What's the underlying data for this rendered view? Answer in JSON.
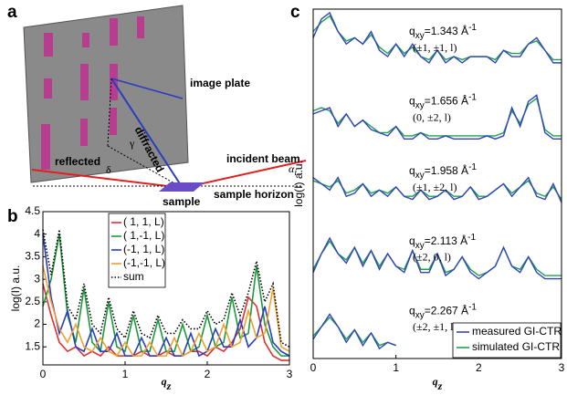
{
  "diagram": {
    "label": "a",
    "image_plate": "image plate",
    "diffracted": "diffracted",
    "reflected": "reflected",
    "incident_beam": "incident beam",
    "sample": "sample",
    "sample_horizon": "sample horizon",
    "delta": "δ",
    "gamma": "γ",
    "alpha": "α",
    "alpha_sub": "i"
  },
  "chart_data": [
    {
      "label": "b",
      "type": "line",
      "x": [
        0,
        0.1,
        0.2,
        0.3,
        0.4,
        0.5,
        0.6,
        0.7,
        0.8,
        0.9,
        1,
        1.1,
        1.2,
        1.3,
        1.4,
        1.5,
        1.6,
        1.7,
        1.8,
        1.9,
        2,
        2.1,
        2.2,
        2.3,
        2.4,
        2.5,
        2.6,
        2.7,
        2.8,
        2.9,
        3
      ],
      "xlim": [
        0,
        3
      ],
      "xticks": [
        0,
        1,
        2,
        3
      ],
      "ylim": [
        1.1,
        4.5
      ],
      "yticks": [
        1.5,
        2,
        2.5,
        3,
        3.5,
        4,
        4.5
      ],
      "ylabel": "log(I) a.u.",
      "xlabel": "q",
      "xlabel_sub": "z",
      "legend": "top-left",
      "series": [
        {
          "name": "( 1, 1, L)",
          "color": "#e03030",
          "linestyle": "solid",
          "values": [
            2.9,
            2.2,
            1.6,
            1.4,
            1.5,
            1.3,
            1.4,
            1.3,
            1.5,
            1.3,
            1.3,
            1.3,
            1.4,
            1.3,
            1.3,
            1.4,
            1.3,
            1.3,
            1.4,
            1.4,
            1.3,
            1.5,
            1.4,
            1.6,
            1.9,
            2.6,
            2.4,
            1.6,
            1.3,
            1.2,
            1.2
          ]
        },
        {
          "name": "( 1,-1, L)",
          "color": "#1a9a3a",
          "linestyle": "solid",
          "values": [
            2.4,
            3.0,
            4.0,
            2.2,
            1.6,
            2.8,
            1.6,
            1.4,
            2.5,
            1.5,
            1.4,
            2.2,
            1.4,
            1.4,
            2.1,
            1.4,
            1.4,
            2.0,
            1.4,
            1.5,
            2.2,
            1.5,
            1.6,
            2.6,
            1.7,
            1.8,
            3.3,
            2.0,
            1.5,
            1.3,
            1.3
          ]
        },
        {
          "name": "(-1, 1, L)",
          "color": "#2a3cc0",
          "linestyle": "solid",
          "values": [
            4.0,
            2.6,
            1.8,
            2.3,
            1.5,
            1.4,
            1.9,
            1.4,
            1.4,
            1.8,
            1.3,
            1.3,
            1.7,
            1.3,
            1.3,
            1.7,
            1.3,
            1.3,
            1.8,
            1.3,
            1.4,
            1.9,
            1.5,
            1.5,
            2.1,
            1.5,
            1.7,
            2.4,
            1.6,
            1.4,
            1.3
          ]
        },
        {
          "name": "(-1,-1, L)",
          "color": "#f0a030",
          "linestyle": "solid",
          "values": [
            3.3,
            2.5,
            1.9,
            1.6,
            2.0,
            1.5,
            1.4,
            1.7,
            1.4,
            1.3,
            1.6,
            1.3,
            1.3,
            1.6,
            1.3,
            1.3,
            1.7,
            1.3,
            1.4,
            1.8,
            1.4,
            1.5,
            2.0,
            1.5,
            1.6,
            2.3,
            1.7,
            1.8,
            2.8,
            1.5,
            1.4
          ]
        },
        {
          "name": "sum",
          "color": "#000000",
          "linestyle": "dotted",
          "values": [
            4.1,
            3.1,
            4.1,
            2.4,
            2.1,
            2.9,
            2.0,
            1.8,
            2.6,
            1.9,
            1.7,
            2.3,
            1.8,
            1.7,
            2.2,
            1.8,
            1.8,
            2.1,
            1.9,
            1.9,
            2.3,
            2.0,
            2.1,
            2.7,
            2.2,
            2.7,
            3.4,
            2.5,
            2.9,
            1.6,
            1.5
          ]
        }
      ]
    },
    {
      "label": "c",
      "type": "stacked-line",
      "x": [
        0,
        0.1,
        0.2,
        0.3,
        0.4,
        0.5,
        0.6,
        0.7,
        0.8,
        0.9,
        1,
        1.1,
        1.2,
        1.3,
        1.4,
        1.5,
        1.6,
        1.7,
        1.8,
        1.9,
        2,
        2.1,
        2.2,
        2.3,
        2.4,
        2.5,
        2.6,
        2.7,
        2.8,
        2.9,
        3
      ],
      "xlim": [
        0,
        3
      ],
      "xticks": [
        0,
        1,
        2,
        3
      ],
      "ylim": [
        0,
        1
      ],
      "ylabel": "log(I) a.u.",
      "xlabel": "q",
      "xlabel_sub": "z",
      "legend": "bottom-right",
      "label_symbol": "q",
      "label_sub": "xy",
      "label_sup": "-1",
      "series": [
        {
          "name": "measured GI-CTR",
          "color": "#3344bb"
        },
        {
          "name": "simulated GI-CTR",
          "color": "#20a050"
        }
      ],
      "panels": [
        {
          "text": "=1.343 Å",
          "index": "(±1, ±1, l)",
          "values": [
            [
              0.6,
              0.9,
              1.0,
              0.7,
              0.5,
              0.6,
              0.5,
              0.7,
              0.4,
              0.3,
              0.5,
              0.3,
              0.5,
              0.3,
              0.2,
              0.4,
              0.2,
              0.3,
              0.2,
              0.3,
              0.3,
              0.3,
              0.2,
              0.4,
              0.3,
              0.3,
              0.5,
              0.6,
              0.4,
              0.2,
              0.2
            ],
            [
              0.7,
              0.85,
              0.95,
              0.7,
              0.55,
              0.6,
              0.5,
              0.65,
              0.45,
              0.35,
              0.5,
              0.35,
              0.45,
              0.3,
              0.25,
              0.4,
              0.25,
              0.3,
              0.25,
              0.3,
              0.3,
              0.3,
              0.25,
              0.4,
              0.35,
              0.35,
              0.5,
              0.55,
              0.4,
              0.25,
              0.25
            ]
          ]
        },
        {
          "text": "=1.656 Å",
          "index": "(0, ±2, l)",
          "values": [
            [
              0.5,
              0.55,
              0.6,
              0.3,
              0.5,
              0.3,
              0.4,
              0.25,
              0.2,
              0.15,
              0.3,
              0.1,
              0.1,
              0.2,
              0.1,
              0.1,
              0.15,
              0.1,
              0.1,
              0.1,
              0.1,
              0.15,
              0.1,
              0.15,
              0.6,
              0.3,
              0.7,
              0.8,
              0.2,
              0.1,
              0.1
            ],
            [
              0.55,
              0.6,
              0.55,
              0.35,
              0.5,
              0.3,
              0.4,
              0.3,
              0.2,
              0.2,
              0.3,
              0.15,
              0.15,
              0.2,
              0.15,
              0.15,
              0.15,
              0.15,
              0.15,
              0.15,
              0.15,
              0.15,
              0.15,
              0.2,
              0.55,
              0.35,
              0.65,
              0.75,
              0.25,
              0.15,
              0.15
            ]
          ]
        },
        {
          "text": "=1.958 Å",
          "index": "(±1, ±2, l)",
          "values": [
            [
              0.6,
              0.5,
              0.4,
              0.6,
              0.3,
              0.35,
              0.5,
              0.3,
              0.4,
              0.3,
              0.45,
              0.3,
              0.25,
              0.4,
              0.25,
              0.3,
              0.4,
              0.25,
              0.3,
              0.45,
              0.25,
              0.3,
              0.4,
              0.5,
              0.3,
              0.45,
              0.6,
              0.3,
              0.25,
              0.5,
              0.2
            ],
            [
              0.55,
              0.5,
              0.45,
              0.55,
              0.35,
              0.4,
              0.5,
              0.35,
              0.4,
              0.35,
              0.45,
              0.3,
              0.3,
              0.4,
              0.3,
              0.3,
              0.4,
              0.3,
              0.3,
              0.45,
              0.3,
              0.3,
              0.4,
              0.5,
              0.35,
              0.45,
              0.55,
              0.35,
              0.3,
              0.45,
              0.25
            ]
          ]
        },
        {
          "text": "=2.113 Å",
          "index": "(±2, 0, l)",
          "values": [
            [
              0.2,
              0.5,
              0.75,
              0.5,
              0.35,
              0.6,
              0.3,
              0.55,
              0.25,
              0.5,
              0.3,
              0.2,
              0.55,
              0.2,
              0.2,
              0.5,
              0.15,
              0.25,
              0.45,
              0.2,
              0.1,
              0.2,
              0.3,
              0.6,
              0.3,
              0.2,
              0.45,
              0.2,
              0.1,
              0.1,
              0.1
            ],
            [
              0.25,
              0.5,
              0.7,
              0.5,
              0.4,
              0.6,
              0.35,
              0.55,
              0.3,
              0.5,
              0.3,
              0.25,
              0.55,
              0.25,
              0.25,
              0.5,
              0.2,
              0.25,
              0.45,
              0.25,
              0.15,
              0.2,
              0.3,
              0.6,
              0.3,
              0.25,
              0.45,
              0.25,
              0.15,
              0.15,
              0.15
            ]
          ]
        },
        {
          "text": "=2.267 Å",
          "index": "(±2, ±1, l)",
          "values": [
            [
              0.25,
              0.45,
              0.65,
              0.45,
              0.2,
              0.4,
              0.15,
              0.35,
              0.1,
              0.2,
              0.15,
              null,
              null,
              null,
              null,
              null,
              null,
              null,
              null,
              null,
              null,
              null,
              null,
              null,
              null,
              null,
              null,
              null,
              null,
              null,
              null
            ],
            [
              0.3,
              0.45,
              0.6,
              0.45,
              0.25,
              0.4,
              0.2,
              0.35,
              0.15,
              0.2,
              0.15,
              null,
              null,
              null,
              null,
              null,
              null,
              null,
              null,
              null,
              null,
              null,
              null,
              null,
              null,
              null,
              null,
              null,
              null,
              null,
              null
            ]
          ]
        }
      ]
    }
  ]
}
